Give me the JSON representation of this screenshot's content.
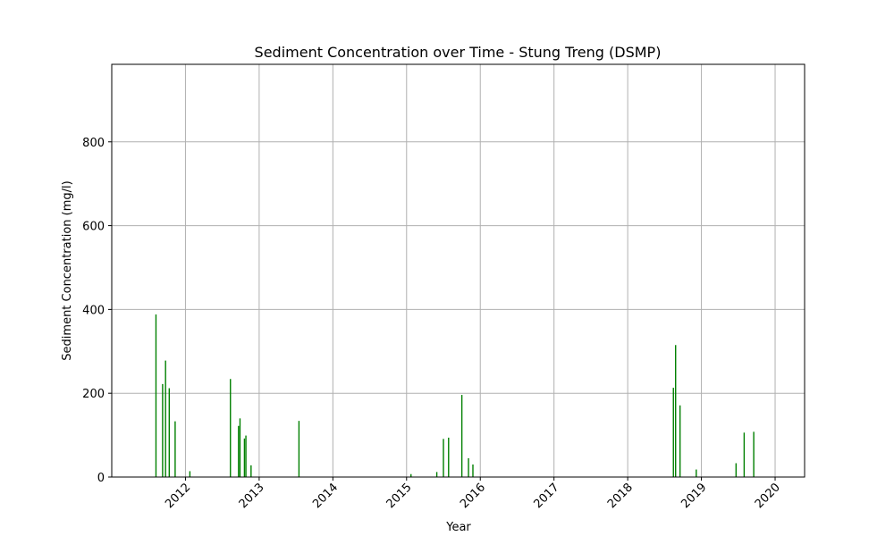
{
  "chart_data": {
    "type": "bar",
    "title": "Sediment Concentration over Time - Stung Treng (DSMP)",
    "xlabel": "Year",
    "ylabel": "Sediment Concentration (mg/l)",
    "xlim": [
      2011.0,
      2020.4
    ],
    "ylim": [
      0,
      985
    ],
    "x_ticks": [
      2012,
      2013,
      2014,
      2015,
      2016,
      2017,
      2018,
      2019,
      2020
    ],
    "y_ticks": [
      0,
      200,
      400,
      600,
      800
    ],
    "grid": true,
    "bar_color": "#008000",
    "series": [
      {
        "x": [
          2011.6,
          2011.69,
          2011.73,
          2011.78,
          2011.86,
          2012.06,
          2012.61,
          2012.72,
          2012.74,
          2012.8,
          2012.82,
          2012.89,
          2013.54,
          2015.06,
          2015.41,
          2015.5,
          2015.57,
          2015.75,
          2015.84,
          2015.9,
          2018.62,
          2018.65,
          2018.71,
          2018.93,
          2019.47,
          2019.58,
          2019.71
        ],
        "values": [
          388,
          222,
          278,
          212,
          133,
          14,
          234,
          122,
          140,
          92,
          99,
          28,
          134,
          7,
          12,
          91,
          94,
          196,
          45,
          30,
          213,
          315,
          171,
          18,
          33,
          106,
          108
        ]
      }
    ]
  }
}
